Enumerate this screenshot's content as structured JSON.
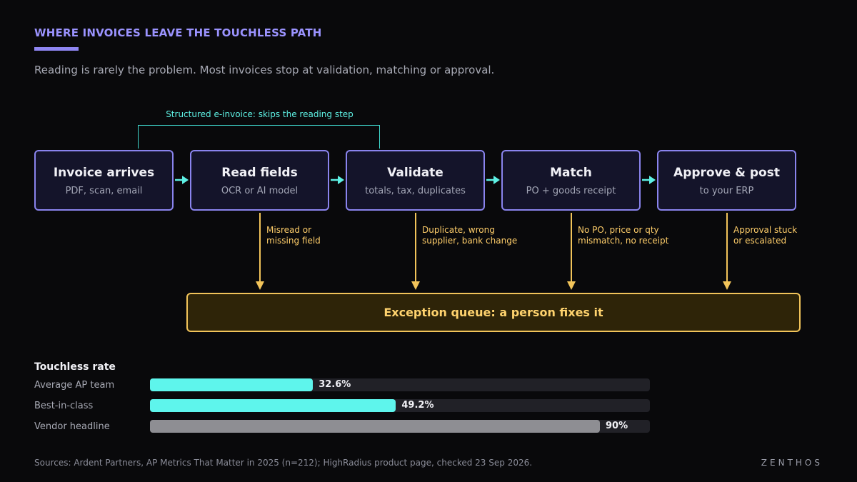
{
  "header": {
    "title": "WHERE INVOICES LEAVE THE TOUCHLESS PATH",
    "subtitle": "Reading is rarely the problem. Most invoices stop at validation, matching or approval."
  },
  "bypass": {
    "label": "Structured e-invoice: skips the reading step"
  },
  "stages": [
    {
      "title": "Invoice arrives",
      "sub": "PDF, scan, email"
    },
    {
      "title": "Read fields",
      "sub": "OCR or AI model"
    },
    {
      "title": "Validate",
      "sub": "totals, tax, duplicates"
    },
    {
      "title": "Match",
      "sub": "PO + goods receipt"
    },
    {
      "title": "Approve & post",
      "sub": "to your ERP"
    }
  ],
  "exceptions": [
    {
      "line1": "Misread or",
      "line2": "missing field"
    },
    {
      "line1": "Duplicate, wrong",
      "line2": "supplier, bank change"
    },
    {
      "line1": "No PO, price or qty",
      "line2": "mismatch, no receipt"
    },
    {
      "line1": "Approval stuck",
      "line2": "or escalated"
    }
  ],
  "queue": {
    "label": "Exception queue: a person fixes it"
  },
  "touchless": {
    "title": "Touchless rate",
    "bars": [
      {
        "label": "Average AP team",
        "value": 32.6,
        "value_label": "32.6%",
        "color": "#5ef5ec"
      },
      {
        "label": "Best-in-class",
        "value": 49.2,
        "value_label": "49.2%",
        "color": "#5ef5ec"
      },
      {
        "label": "Vendor headline",
        "value": 90,
        "value_label": "90%",
        "color": "#8e8e93"
      }
    ]
  },
  "footer": {
    "sources": "Sources: Ardent Partners, AP Metrics That Matter in 2025 (n=212); HighRadius product page, checked 23 Sep 2026.",
    "brand": "ZENTHOS"
  },
  "colors": {
    "accent": "#8f86f2",
    "flow": "#5ef1e4",
    "exception": "#f2c45a"
  }
}
